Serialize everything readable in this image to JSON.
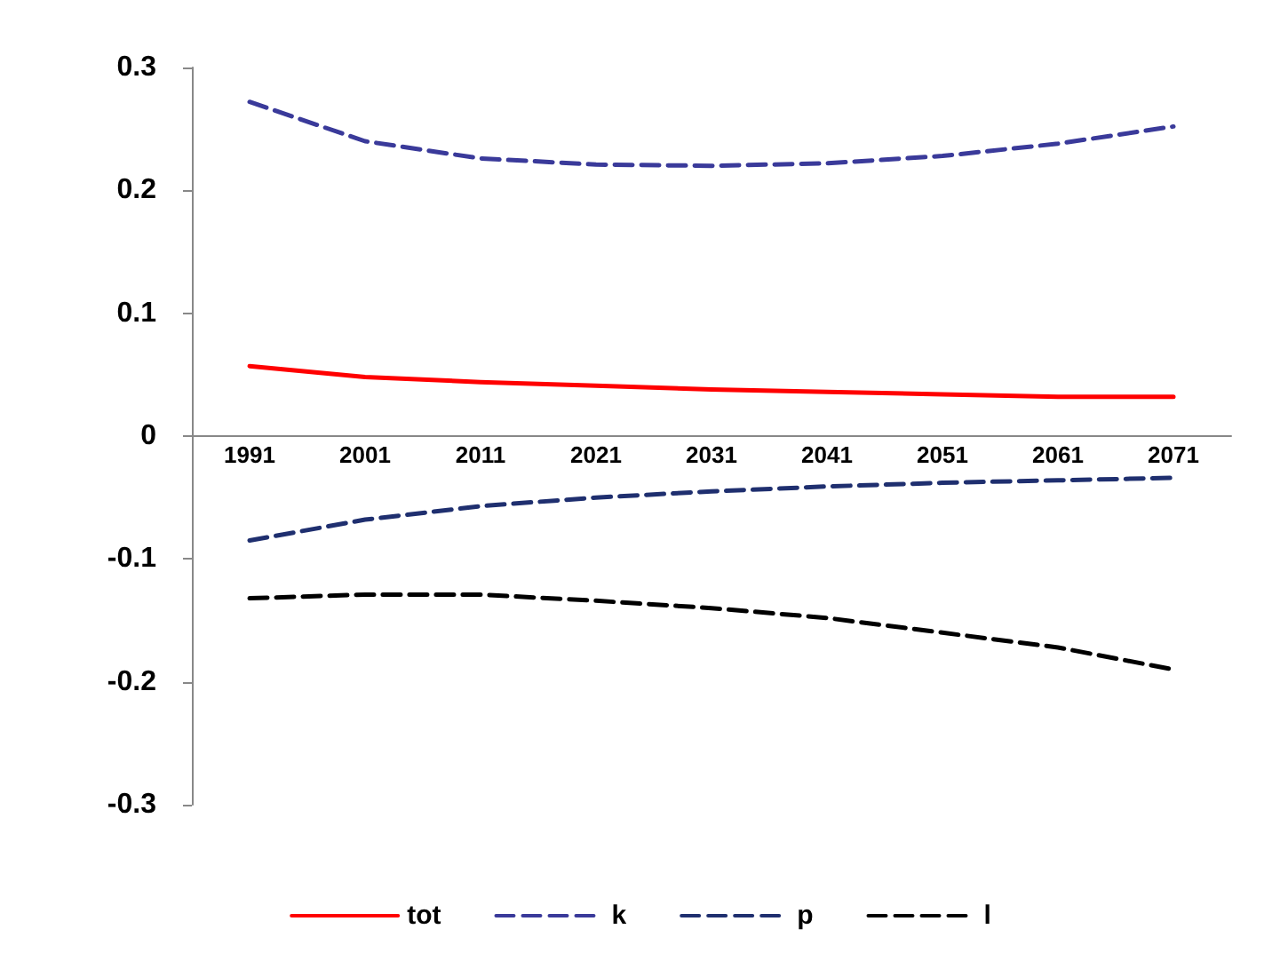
{
  "chart_data": {
    "type": "line",
    "categories": [
      "1991",
      "2001",
      "2011",
      "2021",
      "2031",
      "2041",
      "2051",
      "2061",
      "2071"
    ],
    "series": [
      {
        "name": "tot",
        "color": "#ff0000",
        "line_style": "solid",
        "values": [
          0.057,
          0.048,
          0.044,
          0.041,
          0.038,
          0.036,
          0.034,
          0.032,
          0.032
        ]
      },
      {
        "name": "k",
        "color": "#3a3a9a",
        "line_style": "dashed",
        "values": [
          0.272,
          0.24,
          0.226,
          0.221,
          0.22,
          0.222,
          0.228,
          0.238,
          0.252
        ]
      },
      {
        "name": "p",
        "color": "#1f2f6f",
        "line_style": "dashed",
        "values": [
          -0.085,
          -0.068,
          -0.057,
          -0.05,
          -0.045,
          -0.041,
          -0.038,
          -0.036,
          -0.034
        ]
      },
      {
        "name": "l",
        "color": "#000000",
        "line_style": "dashed",
        "values": [
          -0.132,
          -0.129,
          -0.129,
          -0.134,
          -0.14,
          -0.148,
          -0.16,
          -0.172,
          -0.19
        ]
      }
    ],
    "ylim": [
      -0.3,
      0.3
    ],
    "yticks": [
      -0.3,
      -0.2,
      -0.1,
      0,
      0.1,
      0.2,
      0.3
    ],
    "grid": false,
    "legend": "bottom",
    "marker": "none"
  }
}
